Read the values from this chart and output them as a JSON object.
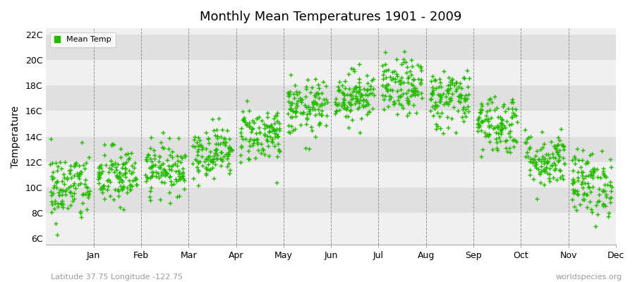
{
  "title": "Monthly Mean Temperatures 1901 - 2009",
  "ylabel": "Temperature",
  "xlabel_labels": [
    "Jan",
    "Feb",
    "Mar",
    "Apr",
    "May",
    "Jun",
    "Jul",
    "Aug",
    "Sep",
    "Oct",
    "Nov",
    "Dec"
  ],
  "ytick_labels": [
    "6C",
    "8C",
    "10C",
    "12C",
    "14C",
    "16C",
    "18C",
    "20C",
    "22C"
  ],
  "ytick_values": [
    6,
    8,
    10,
    12,
    14,
    16,
    18,
    20,
    22
  ],
  "ylim": [
    5.5,
    22.5
  ],
  "dot_color": "#22bb00",
  "background_color": "#ffffff",
  "plot_bg_light": "#f0f0f0",
  "plot_bg_dark": "#e0e0e0",
  "legend_label": "Mean Temp",
  "subtitle": "Latitude 37.75 Longitude -122.75",
  "watermark": "worldspecies.org",
  "monthly_means": [
    10.0,
    10.8,
    11.5,
    12.8,
    14.2,
    16.2,
    17.2,
    17.8,
    17.0,
    15.0,
    12.2,
    10.3
  ],
  "monthly_stds": [
    1.4,
    1.2,
    1.0,
    1.0,
    1.1,
    1.1,
    1.0,
    1.1,
    1.2,
    1.2,
    1.1,
    1.3
  ],
  "n_years": 109,
  "seed": 42,
  "marker_size": 15
}
